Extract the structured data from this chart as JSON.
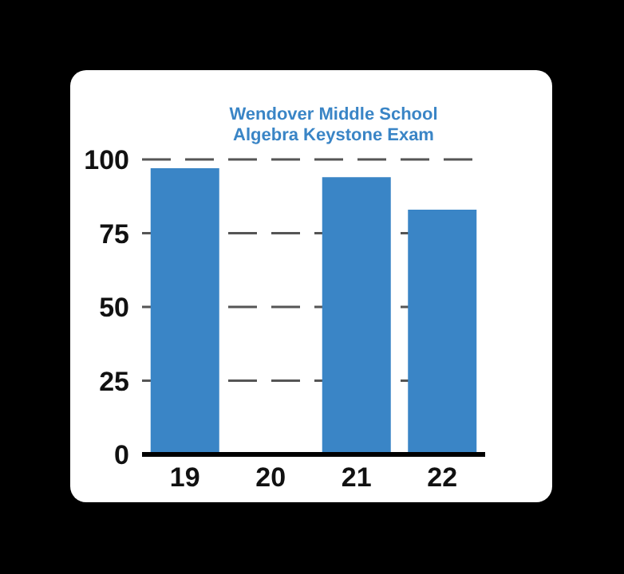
{
  "chart_data": {
    "type": "bar",
    "title": "Wendover Middle School\nAlgebra Keystone Exam",
    "categories": [
      "19",
      "20",
      "21",
      "22"
    ],
    "values": [
      97,
      null,
      94,
      83
    ],
    "color": "#3a85c6",
    "ylim": [
      0,
      100
    ],
    "yticks": [
      0,
      25,
      50,
      75,
      100
    ],
    "grid": "y"
  }
}
